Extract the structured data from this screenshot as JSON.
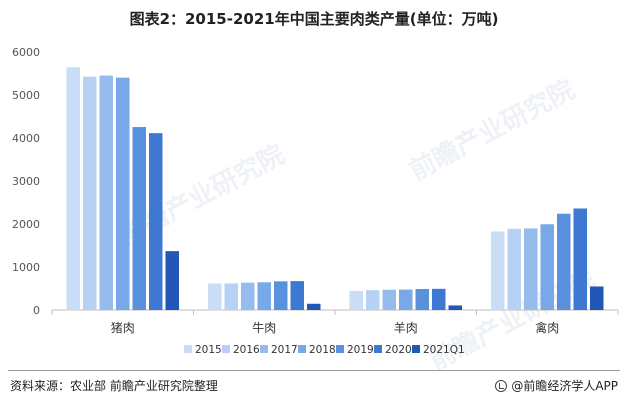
{
  "title": "图表2：2015-2021年中国主要肉类产量(单位：万吨)",
  "source": "资料来源：农业部 前瞻产业研究院整理",
  "brand": "@前瞻经济学人APP",
  "watermark": "前瞻产业研究院",
  "colors": [
    "#c9ddf6",
    "#b6d1f3",
    "#96bcee",
    "#78a8e8",
    "#5991df",
    "#3e78d2",
    "#2257b7"
  ],
  "chart_data": {
    "type": "bar",
    "categories": [
      "猪肉",
      "牛肉",
      "羊肉",
      "禽肉"
    ],
    "series": [
      {
        "name": "2015",
        "values": [
          5645,
          617,
          441,
          1826
        ]
      },
      {
        "name": "2016",
        "values": [
          5426,
          617,
          460,
          1888
        ]
      },
      {
        "name": "2017",
        "values": [
          5452,
          635,
          471,
          1897
        ]
      },
      {
        "name": "2018",
        "values": [
          5404,
          644,
          475,
          1994
        ]
      },
      {
        "name": "2019",
        "values": [
          4255,
          667,
          488,
          2239
        ]
      },
      {
        "name": "2020",
        "values": [
          4113,
          672,
          492,
          2361
        ]
      },
      {
        "name": "2021Q1",
        "values": [
          1369,
          145,
          106,
          547
        ]
      }
    ],
    "ylim": [
      0,
      6000
    ],
    "yticks": [
      0,
      1000,
      2000,
      3000,
      4000,
      5000,
      6000
    ],
    "legend_position": "bottom",
    "grid": false
  }
}
